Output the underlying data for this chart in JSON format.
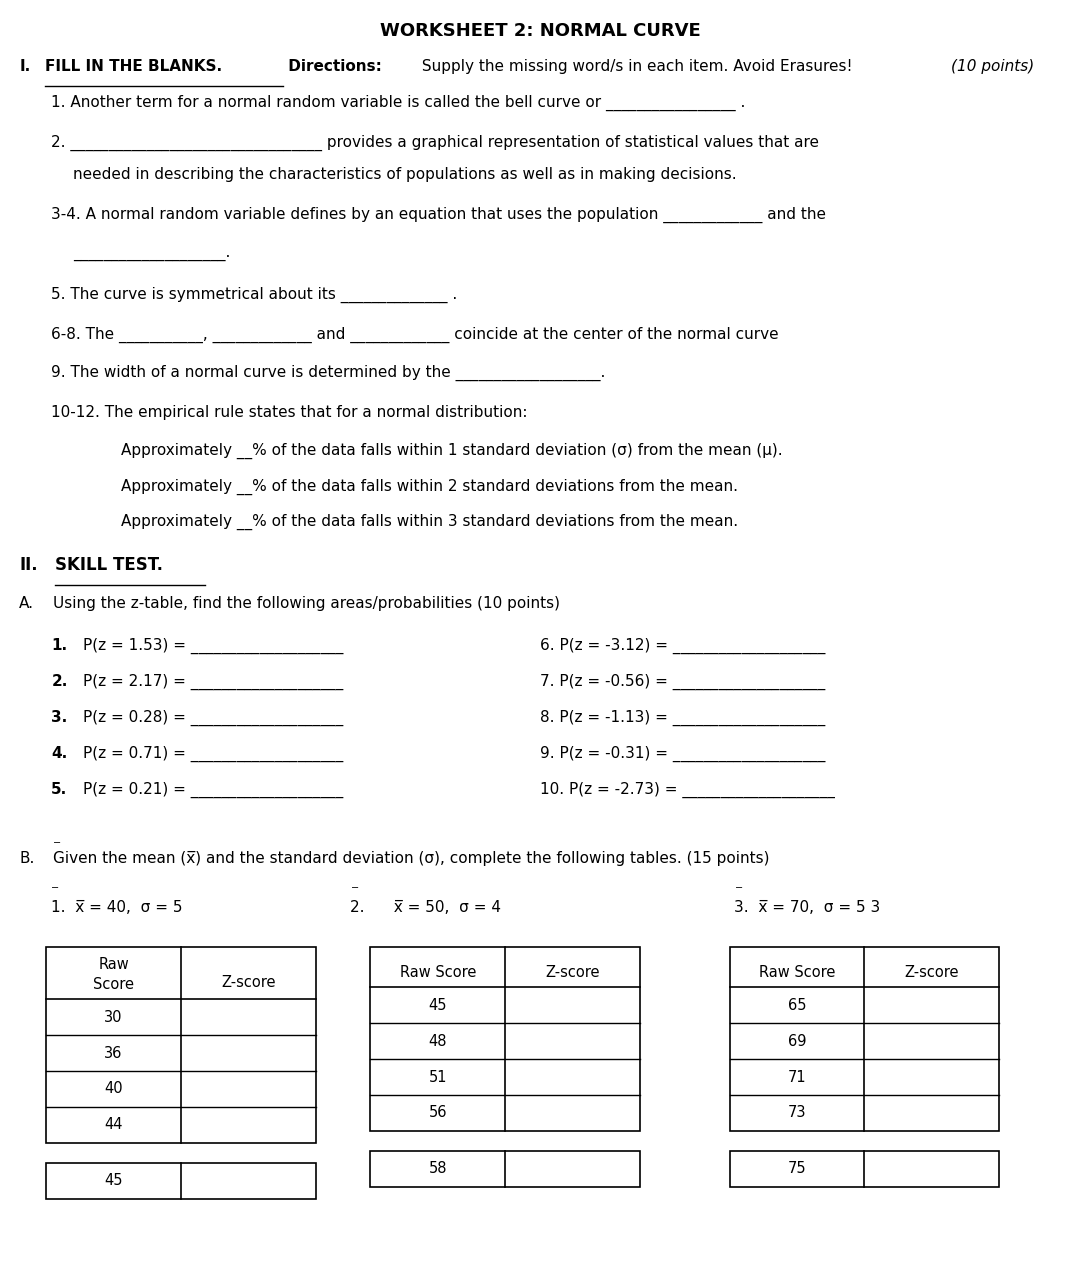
{
  "title": "WORKSHEET 2: NORMAL CURVE",
  "bg_color": "#ffffff",
  "text_color": "#000000",
  "sections": {
    "table1_rows": [
      "30",
      "36",
      "40",
      "44"
    ],
    "table2_rows": [
      "45",
      "48",
      "51",
      "56"
    ],
    "table3_rows": [
      "65",
      "69",
      "71",
      "73"
    ],
    "table1_extra": "45",
    "table2_extra": "58",
    "table3_extra": "75",
    "z_items_left": [
      [
        "1.",
        "P(z = 1.53) = ____________________"
      ],
      [
        "2.",
        "P(z = 2.17) = ____________________"
      ],
      [
        "3.",
        "P(z = 0.28) = ____________________"
      ],
      [
        "4.",
        "P(z = 0.71) = ____________________"
      ],
      [
        "5.",
        "P(z = 0.21) = ____________________"
      ]
    ],
    "z_items_right": [
      "6. P(z = -3.12) = ____________________",
      "7. P(z = -0.56) = ____________________",
      "8. P(z = -1.13) = ____________________",
      "9. P(z = -0.31) = ____________________",
      "10. P(z = -2.73) = ____________________"
    ]
  }
}
